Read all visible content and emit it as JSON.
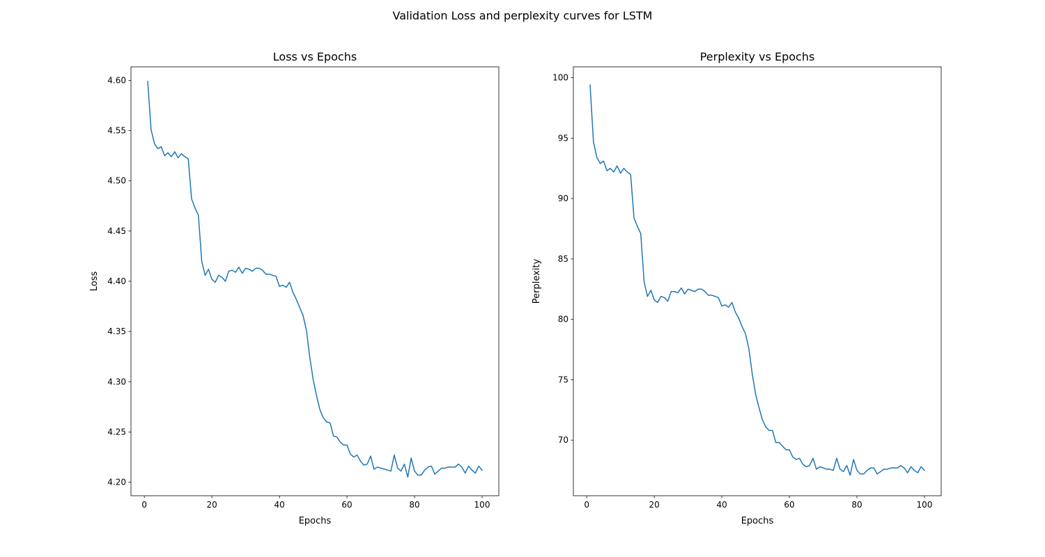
{
  "figure": {
    "suptitle": "Validation Loss and perplexity curves for LSTM"
  },
  "chart_data": [
    {
      "type": "line",
      "title": "Loss vs Epochs",
      "xlabel": "Epochs",
      "ylabel": "Loss",
      "xlim": [
        -3.95,
        104.95
      ],
      "ylim": [
        4.1865,
        4.6135
      ],
      "xticks": [
        0,
        20,
        40,
        60,
        80,
        100
      ],
      "yticks": [
        4.2,
        4.25,
        4.3,
        4.35,
        4.4,
        4.45,
        4.5,
        4.55,
        4.6
      ],
      "ytick_decimals": 2,
      "grid": false,
      "color": "#1f77b4",
      "series": [
        {
          "x": [
            1,
            2,
            3,
            4,
            5,
            6,
            7,
            8,
            9,
            10,
            11,
            12,
            13,
            14,
            15,
            16,
            17,
            18,
            19,
            20,
            21,
            22,
            23,
            24,
            25,
            26,
            27,
            28,
            29,
            30,
            31,
            32,
            33,
            34,
            35,
            36,
            37,
            38,
            39,
            40,
            41,
            42,
            43,
            44,
            45,
            46,
            47,
            48,
            49,
            50,
            51,
            52,
            53,
            54,
            55,
            56,
            57,
            58,
            59,
            60,
            61,
            62,
            63,
            64,
            65,
            66,
            67,
            68,
            69,
            70,
            71,
            72,
            73,
            74,
            75,
            76,
            77,
            78,
            79,
            80,
            81,
            82,
            83,
            84,
            85,
            86,
            87,
            88,
            89,
            90,
            91,
            92,
            93,
            94,
            95,
            96,
            97,
            98,
            99,
            100
          ],
          "values": [
            4.599,
            4.551,
            4.537,
            4.532,
            4.534,
            4.525,
            4.528,
            4.524,
            4.529,
            4.523,
            4.527,
            4.524,
            4.522,
            4.482,
            4.473,
            4.466,
            4.42,
            4.406,
            4.412,
            4.402,
            4.399,
            4.406,
            4.404,
            4.4,
            4.41,
            4.411,
            4.409,
            4.414,
            4.408,
            4.413,
            4.412,
            4.41,
            4.413,
            4.413,
            4.411,
            4.407,
            4.407,
            4.406,
            4.405,
            4.395,
            4.396,
            4.394,
            4.399,
            4.389,
            4.382,
            4.374,
            4.366,
            4.351,
            4.324,
            4.302,
            4.286,
            4.272,
            4.264,
            4.26,
            4.259,
            4.246,
            4.245,
            4.24,
            4.237,
            4.237,
            4.228,
            4.225,
            4.227,
            4.221,
            4.217,
            4.218,
            4.226,
            4.213,
            4.215,
            4.214,
            4.213,
            4.212,
            4.211,
            4.227,
            4.214,
            4.211,
            4.218,
            4.205,
            4.224,
            4.211,
            4.207,
            4.207,
            4.212,
            4.215,
            4.216,
            4.208,
            4.211,
            4.214,
            4.214,
            4.215,
            4.215,
            4.215,
            4.218,
            4.215,
            4.209,
            4.216,
            4.212,
            4.209,
            4.216,
            4.212
          ]
        }
      ]
    },
    {
      "type": "line",
      "title": "Perplexity vs Epochs",
      "xlabel": "Epochs",
      "ylabel": "Perplexity",
      "xlim": [
        -3.95,
        104.95
      ],
      "ylim": [
        65.4,
        100.9
      ],
      "xticks": [
        0,
        20,
        40,
        60,
        80,
        100
      ],
      "yticks": [
        70,
        75,
        80,
        85,
        90,
        95,
        100
      ],
      "ytick_decimals": 0,
      "grid": false,
      "color": "#1f77b4",
      "series": [
        {
          "x": [
            1,
            2,
            3,
            4,
            5,
            6,
            7,
            8,
            9,
            10,
            11,
            12,
            13,
            14,
            15,
            16,
            17,
            18,
            19,
            20,
            21,
            22,
            23,
            24,
            25,
            26,
            27,
            28,
            29,
            30,
            31,
            32,
            33,
            34,
            35,
            36,
            37,
            38,
            39,
            40,
            41,
            42,
            43,
            44,
            45,
            46,
            47,
            48,
            49,
            50,
            51,
            52,
            53,
            54,
            55,
            56,
            57,
            58,
            59,
            60,
            61,
            62,
            63,
            64,
            65,
            66,
            67,
            68,
            69,
            70,
            71,
            72,
            73,
            74,
            75,
            76,
            77,
            78,
            79,
            80,
            81,
            82,
            83,
            84,
            85,
            86,
            87,
            88,
            89,
            90,
            91,
            92,
            93,
            94,
            95,
            96,
            97,
            98,
            99,
            100
          ],
          "values": [
            99.4,
            94.7,
            93.4,
            92.9,
            93.1,
            92.3,
            92.5,
            92.2,
            92.7,
            92.1,
            92.5,
            92.2,
            92.0,
            88.4,
            87.7,
            87.1,
            83.1,
            81.9,
            82.4,
            81.6,
            81.4,
            81.9,
            81.8,
            81.5,
            82.3,
            82.3,
            82.2,
            82.6,
            82.1,
            82.5,
            82.4,
            82.3,
            82.5,
            82.5,
            82.3,
            82.0,
            82.0,
            81.9,
            81.8,
            81.1,
            81.2,
            81.0,
            81.4,
            80.6,
            80.1,
            79.4,
            78.8,
            77.6,
            75.5,
            73.8,
            72.7,
            71.7,
            71.1,
            70.8,
            70.8,
            69.8,
            69.8,
            69.5,
            69.2,
            69.2,
            68.6,
            68.4,
            68.5,
            68.0,
            67.8,
            67.9,
            68.5,
            67.6,
            67.8,
            67.7,
            67.6,
            67.6,
            67.5,
            68.5,
            67.6,
            67.4,
            67.9,
            67.1,
            68.4,
            67.5,
            67.2,
            67.2,
            67.5,
            67.7,
            67.7,
            67.2,
            67.4,
            67.6,
            67.6,
            67.7,
            67.7,
            67.7,
            67.9,
            67.7,
            67.3,
            67.8,
            67.5,
            67.3,
            67.8,
            67.5
          ]
        }
      ]
    }
  ]
}
